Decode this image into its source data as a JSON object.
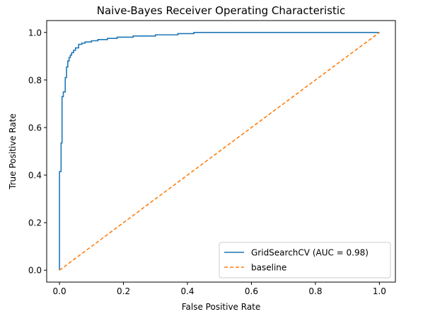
{
  "chart_data": {
    "type": "line",
    "title": "Naive-Bayes Receiver Operating Characteristic",
    "xlabel": "False Positive Rate",
    "ylabel": "True Positive Rate",
    "xlim": [
      -0.04,
      1.05
    ],
    "ylim": [
      -0.05,
      1.05
    ],
    "xticks": [
      0.0,
      0.2,
      0.4,
      0.6,
      0.8,
      1.0
    ],
    "xtick_labels": [
      "0.0",
      "0.2",
      "0.4",
      "0.6",
      "0.8",
      "1.0"
    ],
    "yticks": [
      0.0,
      0.2,
      0.4,
      0.6,
      0.8,
      1.0
    ],
    "ytick_labels": [
      "0.0",
      "0.2",
      "0.4",
      "0.6",
      "0.8",
      "1.0"
    ],
    "grid": false,
    "legend_position": "lower-right",
    "series": [
      {
        "name": "GridSearchCV (AUC = 0.98)",
        "color": "#1f77b4",
        "style": "solid",
        "x": [
          0.0,
          0.0,
          0.005,
          0.005,
          0.008,
          0.008,
          0.012,
          0.012,
          0.018,
          0.018,
          0.022,
          0.022,
          0.026,
          0.026,
          0.03,
          0.03,
          0.034,
          0.034,
          0.038,
          0.038,
          0.044,
          0.044,
          0.05,
          0.05,
          0.06,
          0.06,
          0.07,
          0.07,
          0.08,
          0.08,
          0.1,
          0.1,
          0.12,
          0.12,
          0.15,
          0.15,
          0.18,
          0.18,
          0.23,
          0.23,
          0.3,
          0.3,
          0.37,
          0.37,
          0.42,
          0.42,
          1.0
        ],
        "y": [
          0.0,
          0.415,
          0.415,
          0.535,
          0.535,
          0.73,
          0.73,
          0.75,
          0.75,
          0.81,
          0.81,
          0.855,
          0.855,
          0.88,
          0.88,
          0.895,
          0.895,
          0.905,
          0.905,
          0.915,
          0.915,
          0.925,
          0.925,
          0.935,
          0.935,
          0.95,
          0.95,
          0.955,
          0.955,
          0.96,
          0.96,
          0.965,
          0.965,
          0.97,
          0.97,
          0.975,
          0.975,
          0.98,
          0.98,
          0.985,
          0.985,
          0.99,
          0.99,
          0.995,
          0.995,
          1.0,
          1.0
        ]
      },
      {
        "name": "baseline",
        "color": "#ff7f0e",
        "style": "dashed",
        "x": [
          0.0,
          1.0
        ],
        "y": [
          0.0,
          1.0
        ]
      }
    ]
  }
}
